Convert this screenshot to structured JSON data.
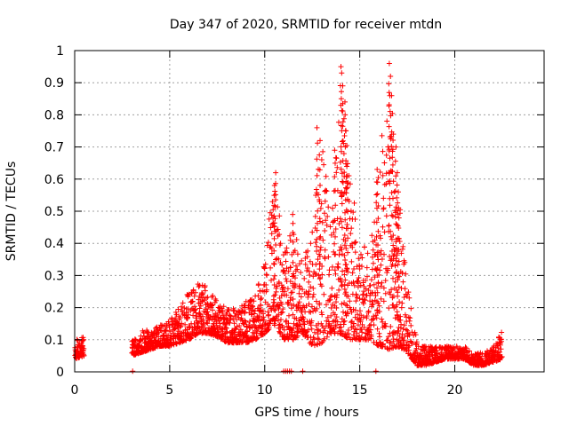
{
  "chart_data": {
    "type": "scatter",
    "title": "Day 347 of 2020, SRMTID for receiver mtdn",
    "xlabel": "GPS time / hours",
    "ylabel": "SRMTID / TECUs",
    "xlim": [
      0,
      24.7
    ],
    "ylim": [
      0,
      1
    ],
    "grid": true,
    "legend": "none",
    "marker": "plus",
    "color": "#ff0000",
    "x_ticks": [
      0,
      5,
      10,
      15,
      20
    ],
    "y_ticks": [
      0,
      0.1,
      0.2,
      0.3,
      0.4,
      0.5,
      0.6,
      0.7,
      0.8,
      0.9,
      1
    ],
    "x_tick_labels": [
      "0",
      "5",
      "10",
      "15",
      "20"
    ],
    "y_tick_labels": [
      "0",
      "0.1",
      "0.2",
      "0.3",
      "0.4",
      "0.5",
      "0.6",
      "0.7",
      "0.8",
      "0.9",
      "1"
    ],
    "envelope": {
      "description": "approximate data envelope (min/max of SRMTID per hour, data units)",
      "x": [
        0.0,
        0.5,
        1.0,
        1.5,
        2.0,
        2.5,
        3.0,
        3.5,
        4.0,
        4.5,
        5.0,
        5.5,
        6.0,
        6.5,
        7.0,
        7.5,
        8.0,
        8.5,
        9.0,
        9.5,
        10.0,
        10.5,
        11.0,
        11.5,
        12.0,
        12.5,
        13.0,
        13.5,
        14.0,
        14.5,
        15.0,
        15.5,
        16.0,
        16.5,
        17.0,
        17.5,
        18.0,
        18.5,
        19.0,
        19.5,
        20.0,
        20.5,
        21.0,
        21.5,
        22.0,
        22.5,
        23.0
      ],
      "low": [
        0.04,
        0.05,
        null,
        null,
        null,
        null,
        0.05,
        0.06,
        0.07,
        0.08,
        0.08,
        0.09,
        0.1,
        0.12,
        0.12,
        0.11,
        0.09,
        0.09,
        0.09,
        0.1,
        0.12,
        0.15,
        0.1,
        0.1,
        0.12,
        0.08,
        0.09,
        0.12,
        0.12,
        0.1,
        0.1,
        0.1,
        0.08,
        0.07,
        0.08,
        0.06,
        0.02,
        0.02,
        0.03,
        0.04,
        0.04,
        0.04,
        0.02,
        0.02,
        0.03,
        0.04,
        null
      ],
      "high": [
        0.1,
        0.11,
        null,
        null,
        null,
        null,
        0.1,
        0.13,
        0.13,
        0.15,
        0.16,
        0.2,
        0.25,
        0.29,
        0.26,
        0.22,
        0.2,
        0.2,
        0.22,
        0.24,
        0.35,
        0.62,
        0.38,
        0.45,
        0.35,
        0.45,
        0.75,
        0.45,
        0.95,
        0.62,
        0.4,
        0.38,
        0.63,
        0.96,
        0.58,
        0.28,
        0.1,
        0.08,
        0.08,
        0.08,
        0.08,
        0.08,
        0.06,
        0.06,
        0.08,
        0.13,
        null
      ]
    },
    "peaks": [
      {
        "x": 10.55,
        "y": 0.62
      },
      {
        "x": 10.5,
        "y": 0.58
      },
      {
        "x": 11.5,
        "y": 0.49
      },
      {
        "x": 12.75,
        "y": 0.76
      },
      {
        "x": 12.9,
        "y": 0.72
      },
      {
        "x": 13.7,
        "y": 0.69
      },
      {
        "x": 14.0,
        "y": 0.95
      },
      {
        "x": 14.05,
        "y": 0.93
      },
      {
        "x": 14.1,
        "y": 0.89
      },
      {
        "x": 14.2,
        "y": 0.84
      },
      {
        "x": 14.25,
        "y": 0.8
      },
      {
        "x": 14.3,
        "y": 0.75
      },
      {
        "x": 14.35,
        "y": 0.61
      },
      {
        "x": 15.9,
        "y": 0.63
      },
      {
        "x": 15.95,
        "y": 0.59
      },
      {
        "x": 16.55,
        "y": 0.96
      },
      {
        "x": 16.6,
        "y": 0.92
      },
      {
        "x": 16.7,
        "y": 0.86
      },
      {
        "x": 16.75,
        "y": 0.74
      },
      {
        "x": 16.9,
        "y": 0.7
      },
      {
        "x": 16.95,
        "y": 0.62
      },
      {
        "x": 17.0,
        "y": 0.56
      },
      {
        "x": 17.05,
        "y": 0.51
      }
    ],
    "zero_points_x": [
      3.05,
      11.0,
      11.1,
      11.2,
      11.3,
      11.4,
      12.0,
      15.85
    ]
  }
}
